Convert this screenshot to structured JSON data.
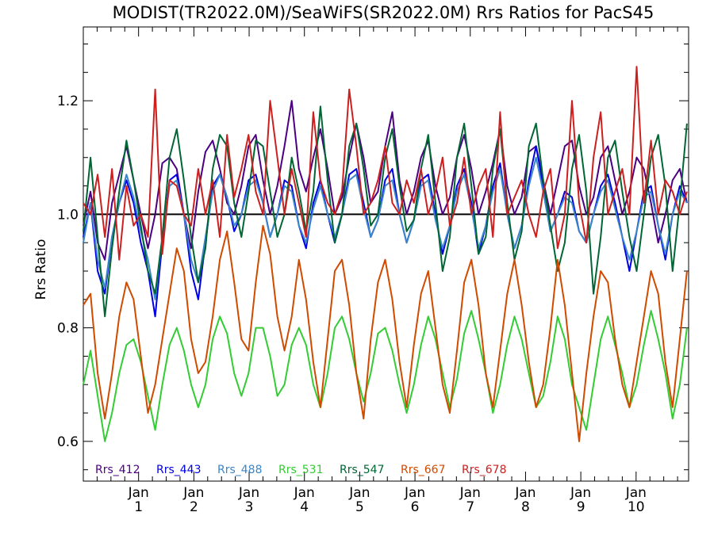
{
  "chart_data": {
    "type": "line",
    "title": "MODIST(TR2022.0M)/SeaWiFS(SR2022.0M)  Rrs Ratios for PacS45",
    "ylabel": "Rrs Ratio",
    "xlabel": "",
    "ylim": [
      0.53,
      1.33
    ],
    "xlim": [
      0.0,
      10.95
    ],
    "yticks": [
      0.6,
      0.8,
      1.0,
      1.2
    ],
    "ytick_labels": [
      "0.6",
      "0.8",
      "1.0",
      "1.2"
    ],
    "xticks": [
      {
        "x": 1,
        "line1": "Jan",
        "line2": "1"
      },
      {
        "x": 2,
        "line1": "Jan",
        "line2": "2"
      },
      {
        "x": 3,
        "line1": "Jan",
        "line2": "3"
      },
      {
        "x": 4,
        "line1": "Jan",
        "line2": "4"
      },
      {
        "x": 5,
        "line1": "Jan",
        "line2": "5"
      },
      {
        "x": 6,
        "line1": "Jan",
        "line2": "6"
      },
      {
        "x": 7,
        "line1": "Jan",
        "line2": "7"
      },
      {
        "x": 8,
        "line1": "Jan",
        "line2": "8"
      },
      {
        "x": 9,
        "line1": "Jan",
        "line2": "9"
      },
      {
        "x": 10,
        "line1": "Jan",
        "line2": "10"
      }
    ],
    "reference_line": 1.0,
    "legend_position": "bottom-left",
    "x": [
      0.0,
      0.13,
      0.26,
      0.39,
      0.52,
      0.65,
      0.78,
      0.91,
      1.04,
      1.17,
      1.3,
      1.43,
      1.56,
      1.69,
      1.82,
      1.95,
      2.08,
      2.21,
      2.34,
      2.47,
      2.6,
      2.73,
      2.86,
      2.99,
      3.12,
      3.25,
      3.38,
      3.51,
      3.64,
      3.77,
      3.9,
      4.03,
      4.16,
      4.29,
      4.42,
      4.55,
      4.68,
      4.81,
      4.94,
      5.07,
      5.2,
      5.33,
      5.46,
      5.59,
      5.72,
      5.85,
      5.98,
      6.11,
      6.24,
      6.37,
      6.5,
      6.63,
      6.76,
      6.89,
      7.02,
      7.15,
      7.28,
      7.41,
      7.54,
      7.67,
      7.8,
      7.93,
      8.06,
      8.19,
      8.32,
      8.45,
      8.58,
      8.71,
      8.84,
      8.97,
      9.1,
      9.23,
      9.36,
      9.49,
      9.62,
      9.75,
      9.88,
      10.01,
      10.14,
      10.27,
      10.4,
      10.53,
      10.66,
      10.79,
      10.92
    ],
    "series": [
      {
        "name": "Rrs_412",
        "color": "#4b0082",
        "values": [
          0.98,
          1.04,
          0.95,
          0.92,
          1.02,
          1.07,
          1.12,
          1.06,
          1.0,
          0.94,
          1.0,
          1.09,
          1.1,
          1.08,
          1.0,
          0.94,
          1.04,
          1.11,
          1.13,
          1.08,
          1.02,
          1.0,
          1.05,
          1.12,
          1.14,
          1.06,
          1.0,
          1.05,
          1.12,
          1.2,
          1.08,
          1.04,
          1.1,
          1.15,
          1.08,
          1.0,
          1.03,
          1.1,
          1.16,
          1.1,
          1.02,
          1.04,
          1.12,
          1.18,
          1.06,
          1.0,
          1.04,
          1.1,
          1.13,
          1.05,
          1.0,
          1.03,
          1.1,
          1.14,
          1.08,
          1.0,
          1.04,
          1.09,
          1.15,
          1.05,
          1.0,
          1.03,
          1.11,
          1.12,
          1.06,
          1.0,
          1.06,
          1.12,
          1.13,
          1.05,
          1.0,
          1.03,
          1.1,
          1.12,
          1.06,
          1.0,
          1.04,
          1.1,
          1.08,
          1.02,
          0.95,
          1.0,
          1.06,
          1.08,
          1.02
        ]
      },
      {
        "name": "Rrs_443",
        "color": "#0000e0",
        "values": [
          0.96,
          1.02,
          0.9,
          0.86,
          0.96,
          1.02,
          1.06,
          1.02,
          0.95,
          0.9,
          0.82,
          0.95,
          1.06,
          1.07,
          1.0,
          0.9,
          0.85,
          0.95,
          1.05,
          1.07,
          1.03,
          0.97,
          1.0,
          1.06,
          1.07,
          1.02,
          0.96,
          1.0,
          1.06,
          1.05,
          0.98,
          0.94,
          1.02,
          1.06,
          1.0,
          0.95,
          1.0,
          1.07,
          1.08,
          1.02,
          0.96,
          0.99,
          1.06,
          1.08,
          1.0,
          0.95,
          0.99,
          1.06,
          1.07,
          1.0,
          0.93,
          0.98,
          1.05,
          1.08,
          1.02,
          0.93,
          0.98,
          1.05,
          1.09,
          1.0,
          0.94,
          0.98,
          1.06,
          1.12,
          1.05,
          0.97,
          1.0,
          1.04,
          1.03,
          0.97,
          0.95,
          1.0,
          1.05,
          1.07,
          1.02,
          0.96,
          0.9,
          0.97,
          1.04,
          1.05,
          0.98,
          0.92,
          1.0,
          1.05,
          1.02
        ]
      },
      {
        "name": "Rrs_488",
        "color": "#3a86c8",
        "values": [
          0.95,
          1.02,
          0.92,
          0.87,
          0.96,
          1.02,
          1.07,
          1.03,
          0.97,
          0.92,
          0.85,
          0.96,
          1.05,
          1.06,
          1.0,
          0.92,
          0.88,
          0.96,
          1.04,
          1.07,
          1.03,
          0.98,
          1.0,
          1.05,
          1.06,
          1.02,
          0.96,
          1.0,
          1.05,
          1.04,
          0.98,
          0.95,
          1.01,
          1.05,
          1.0,
          0.96,
          1.0,
          1.06,
          1.07,
          1.01,
          0.96,
          0.99,
          1.05,
          1.06,
          1.0,
          0.95,
          0.99,
          1.05,
          1.06,
          0.99,
          0.94,
          0.98,
          1.04,
          1.07,
          1.01,
          0.94,
          0.98,
          1.04,
          1.08,
          1.0,
          0.94,
          0.98,
          1.05,
          1.1,
          1.04,
          0.97,
          1.0,
          1.03,
          1.02,
          0.97,
          0.95,
          1.0,
          1.04,
          1.06,
          1.01,
          0.96,
          0.92,
          0.97,
          1.03,
          1.04,
          0.98,
          0.93,
          1.0,
          1.04,
          1.02
        ]
      },
      {
        "name": "Rrs_531",
        "color": "#33cc33",
        "values": [
          0.7,
          0.76,
          0.68,
          0.6,
          0.65,
          0.72,
          0.77,
          0.78,
          0.74,
          0.68,
          0.62,
          0.7,
          0.77,
          0.8,
          0.76,
          0.7,
          0.66,
          0.7,
          0.78,
          0.82,
          0.79,
          0.72,
          0.68,
          0.72,
          0.8,
          0.8,
          0.75,
          0.68,
          0.7,
          0.77,
          0.8,
          0.77,
          0.7,
          0.66,
          0.72,
          0.8,
          0.82,
          0.78,
          0.72,
          0.67,
          0.72,
          0.79,
          0.8,
          0.76,
          0.7,
          0.65,
          0.7,
          0.77,
          0.82,
          0.78,
          0.72,
          0.66,
          0.71,
          0.79,
          0.83,
          0.78,
          0.72,
          0.65,
          0.7,
          0.77,
          0.82,
          0.78,
          0.72,
          0.66,
          0.68,
          0.74,
          0.82,
          0.78,
          0.7,
          0.66,
          0.62,
          0.7,
          0.78,
          0.82,
          0.77,
          0.72,
          0.66,
          0.7,
          0.77,
          0.83,
          0.78,
          0.72,
          0.64,
          0.7,
          0.8
        ]
      },
      {
        "name": "Rrs_547",
        "color": "#006633",
        "values": [
          0.97,
          1.1,
          0.96,
          0.82,
          0.94,
          1.04,
          1.13,
          1.06,
          0.98,
          0.9,
          0.86,
          0.96,
          1.1,
          1.15,
          1.06,
          0.96,
          0.88,
          0.94,
          1.08,
          1.14,
          1.12,
          1.02,
          0.96,
          1.04,
          1.13,
          1.12,
          1.04,
          0.96,
          1.0,
          1.1,
          1.04,
          0.97,
          1.04,
          1.19,
          1.06,
          0.95,
          1.0,
          1.12,
          1.16,
          1.08,
          0.98,
          1.0,
          1.1,
          1.15,
          1.05,
          0.97,
          0.99,
          1.08,
          1.14,
          1.02,
          0.9,
          0.96,
          1.1,
          1.16,
          1.05,
          0.93,
          0.96,
          1.08,
          1.15,
          1.02,
          0.92,
          0.97,
          1.12,
          1.16,
          1.06,
          0.98,
          0.9,
          0.95,
          1.08,
          1.14,
          1.04,
          0.86,
          0.96,
          1.1,
          1.13,
          1.04,
          0.96,
          0.9,
          1.0,
          1.1,
          1.14,
          1.05,
          0.9,
          1.02,
          1.16
        ]
      },
      {
        "name": "Rrs_667",
        "color": "#d04a00",
        "values": [
          0.84,
          0.86,
          0.72,
          0.64,
          0.72,
          0.82,
          0.88,
          0.85,
          0.75,
          0.65,
          0.7,
          0.78,
          0.86,
          0.94,
          0.9,
          0.78,
          0.72,
          0.74,
          0.82,
          0.92,
          0.97,
          0.88,
          0.78,
          0.76,
          0.88,
          0.98,
          0.93,
          0.82,
          0.76,
          0.82,
          0.92,
          0.85,
          0.74,
          0.66,
          0.78,
          0.9,
          0.92,
          0.84,
          0.72,
          0.64,
          0.78,
          0.88,
          0.92,
          0.85,
          0.74,
          0.66,
          0.77,
          0.86,
          0.9,
          0.8,
          0.7,
          0.65,
          0.76,
          0.88,
          0.92,
          0.84,
          0.72,
          0.66,
          0.76,
          0.86,
          0.92,
          0.84,
          0.74,
          0.66,
          0.7,
          0.8,
          0.92,
          0.84,
          0.72,
          0.6,
          0.72,
          0.82,
          0.9,
          0.88,
          0.78,
          0.7,
          0.66,
          0.74,
          0.82,
          0.9,
          0.86,
          0.74,
          0.66,
          0.78,
          0.9
        ]
      },
      {
        "name": "Rrs_678",
        "color": "#cc2020",
        "values": [
          1.02,
          1.0,
          1.07,
          0.96,
          1.08,
          0.92,
          1.05,
          0.98,
          1.0,
          0.96,
          1.22,
          0.93,
          1.06,
          1.05,
          1.0,
          0.98,
          1.08,
          1.0,
          1.06,
          0.96,
          1.14,
          1.03,
          1.08,
          1.14,
          1.04,
          1.0,
          1.2,
          1.1,
          1.0,
          1.08,
          1.02,
          0.96,
          1.18,
          1.06,
          1.02,
          1.0,
          1.04,
          1.22,
          1.12,
          1.0,
          1.02,
          1.06,
          1.12,
          1.02,
          1.0,
          1.06,
          1.02,
          1.08,
          1.0,
          1.04,
          1.1,
          0.98,
          1.02,
          1.1,
          1.0,
          1.05,
          1.08,
          0.96,
          1.18,
          1.0,
          1.03,
          1.06,
          1.0,
          0.96,
          1.04,
          1.08,
          0.94,
          1.0,
          1.2,
          1.02,
          0.95,
          1.1,
          1.18,
          1.0,
          1.04,
          1.08,
          1.0,
          1.26,
          1.02,
          1.13,
          1.0,
          1.06,
          1.04,
          1.0,
          1.04
        ]
      }
    ]
  }
}
